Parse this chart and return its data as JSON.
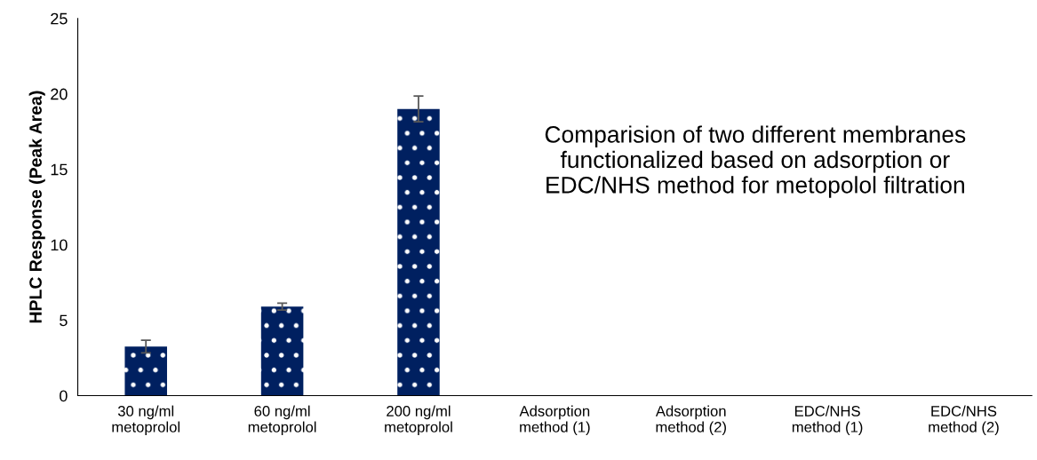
{
  "chart_data": {
    "type": "bar",
    "ylabel": "HPLC Response (Peak Area)",
    "categories": [
      "30 ng/ml\nmetoprolol",
      "60 ng/ml\nmetoprolol",
      "200 ng/ml\nmetoprolol",
      "Adsorption\nmethod (1)",
      "Adsorption\nmethod (2)",
      "EDC/NHS\nmethod (1)",
      "EDC/NHS\nmethod (2)"
    ],
    "values": [
      3.25,
      5.9,
      19.0,
      null,
      null,
      null,
      null
    ],
    "errors": [
      0.42,
      0.23,
      0.85,
      null,
      null,
      null,
      null
    ],
    "color": "#002060",
    "ylim": [
      0,
      25
    ],
    "yticks": [
      0,
      5,
      10,
      15,
      20,
      25
    ],
    "grid": false,
    "annotations": [
      "Comparision of two different membranes\nfunctionalized based on adsorption or\nEDC/NHS method for metopolol filtration"
    ]
  }
}
